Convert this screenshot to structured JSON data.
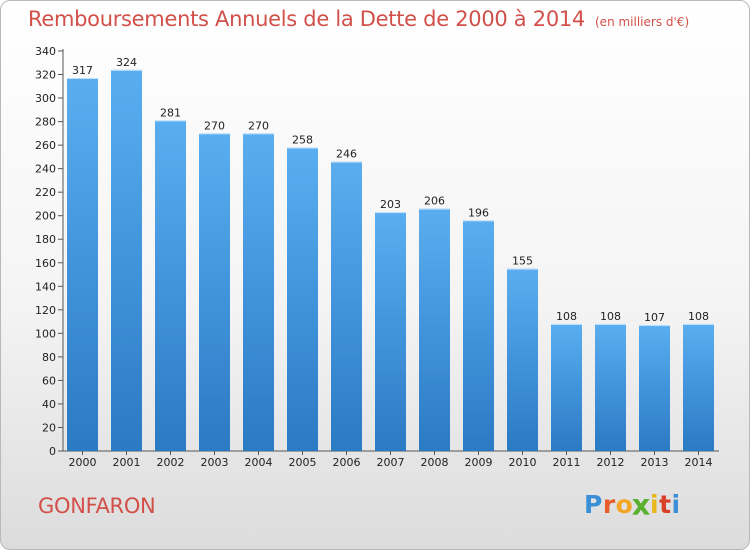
{
  "header": {
    "title": "Remboursements Annuels de la Dette de 2000 à 2014",
    "subtitle": "(en milliers d'€)"
  },
  "footer": {
    "city": "GONFARON",
    "logo_letters": [
      "P",
      "r",
      "o",
      "x",
      "i",
      "t",
      "i"
    ],
    "logo_colors": [
      "#3a8fd6",
      "#e85b2a",
      "#f2a623",
      "#5bb02f",
      "#e8b71c",
      "#d8402a",
      "#3a8fd6"
    ]
  },
  "chart_data": {
    "type": "bar",
    "title": "Remboursements Annuels de la Dette de 2000 à 2014",
    "subtitle": "(en milliers d'€)",
    "categories": [
      "2000",
      "2001",
      "2002",
      "2003",
      "2004",
      "2005",
      "2006",
      "2007",
      "2008",
      "2009",
      "2010",
      "2011",
      "2012",
      "2013",
      "2014"
    ],
    "values": [
      317,
      324,
      281,
      270,
      270,
      258,
      246,
      203,
      206,
      196,
      155,
      108,
      108,
      107,
      108
    ],
    "ylim": [
      0,
      340
    ],
    "yticks": [
      0,
      20,
      40,
      60,
      80,
      100,
      120,
      140,
      160,
      180,
      200,
      220,
      240,
      260,
      280,
      300,
      320,
      340
    ],
    "xlabel": "",
    "ylabel": "",
    "grid": false,
    "bar_color": "#4a9fe0"
  }
}
